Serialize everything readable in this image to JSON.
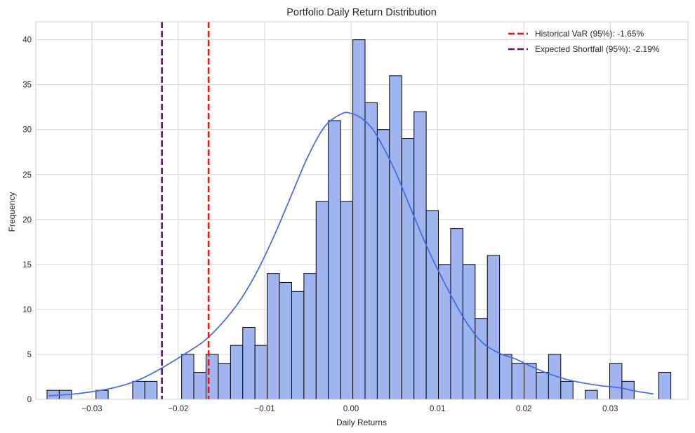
{
  "chart_data": {
    "type": "bar",
    "title": "Portfolio Daily Return Distribution",
    "xlabel": "Daily Returns",
    "ylabel": "Frequency",
    "xlim": [
      -0.0365,
      0.039
    ],
    "ylim": [
      0,
      42
    ],
    "x_ticks": [
      -0.03,
      -0.02,
      -0.01,
      0.0,
      0.01,
      0.02,
      0.03
    ],
    "x_tick_labels": [
      "−0.03",
      "−0.02",
      "−0.01",
      "0.00",
      "0.01",
      "0.02",
      "0.03"
    ],
    "y_ticks": [
      0,
      5,
      10,
      15,
      20,
      25,
      30,
      35,
      40
    ],
    "y_tick_labels": [
      "0",
      "5",
      "10",
      "15",
      "20",
      "25",
      "30",
      "35",
      "40"
    ],
    "grid": true,
    "legend_position": "top-right",
    "colors": {
      "bar_fill": "#a0b4f0",
      "bar_edge": "#000000",
      "kde": "#4169e1",
      "var_line": "#ee1111",
      "es_line": "#800080"
    },
    "histogram": {
      "bin_start": -0.0352,
      "bin_width": 0.001416,
      "counts": [
        1,
        1,
        0,
        0,
        1,
        0,
        0,
        2,
        2,
        0,
        0,
        5,
        3,
        5,
        4,
        6,
        8,
        6,
        14,
        13,
        12,
        14,
        22,
        31,
        22,
        40,
        33,
        30,
        36,
        29,
        32,
        21,
        15,
        19,
        15,
        9,
        16,
        5,
        4,
        4,
        3,
        5,
        2,
        0,
        1,
        0,
        4,
        2,
        0,
        0,
        3
      ]
    },
    "kde": {
      "name": "",
      "x": [
        -0.035,
        -0.032,
        -0.029,
        -0.027,
        -0.025,
        -0.023,
        -0.021,
        -0.019,
        -0.017,
        -0.015,
        -0.013,
        -0.011,
        -0.009,
        -0.007,
        -0.005,
        -0.003,
        -0.001,
        0.0,
        0.001,
        0.002,
        0.003,
        0.005,
        0.007,
        0.009,
        0.011,
        0.013,
        0.015,
        0.017,
        0.019,
        0.021,
        0.023,
        0.025,
        0.027,
        0.029,
        0.031,
        0.033,
        0.035
      ],
      "y": [
        0.4,
        0.6,
        1.0,
        1.4,
        2.0,
        2.9,
        4.0,
        5.2,
        6.5,
        8.4,
        10.8,
        14.0,
        18.0,
        22.5,
        27.0,
        30.4,
        31.8,
        31.8,
        31.4,
        30.6,
        29.3,
        25.6,
        21.0,
        16.5,
        12.6,
        9.1,
        6.5,
        5.2,
        4.5,
        3.6,
        2.8,
        2.2,
        1.8,
        1.5,
        1.3,
        0.9,
        0.6
      ]
    },
    "vlines": [
      {
        "name": "Historical VaR (95%): -1.65%",
        "x": -0.0165,
        "color": "#ee1111"
      },
      {
        "name": "Expected Shortfall (95%): -2.19%",
        "x": -0.0219,
        "color": "#800080"
      }
    ]
  }
}
